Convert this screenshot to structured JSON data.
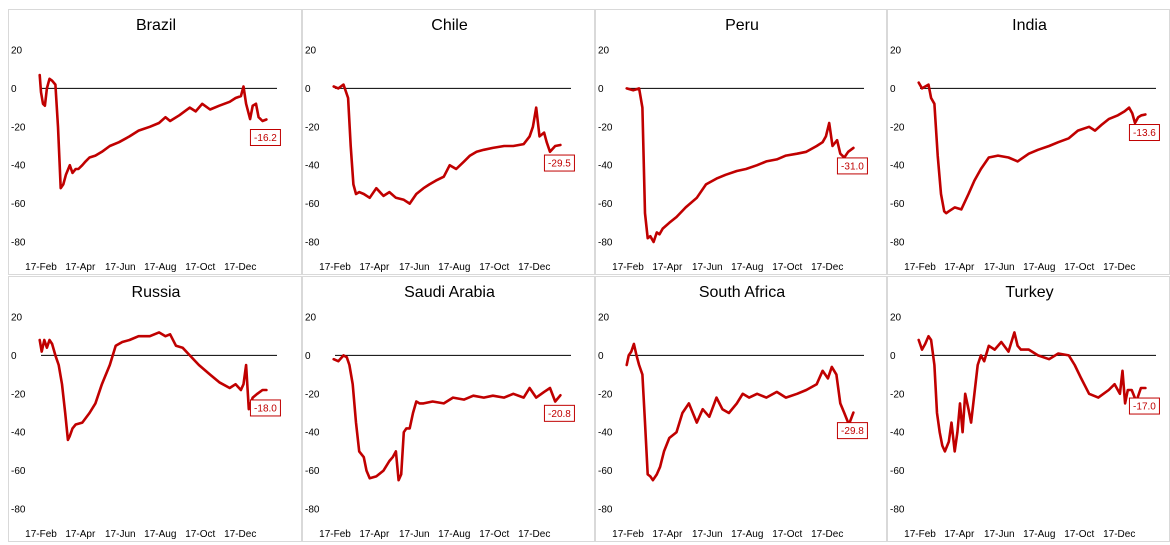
{
  "style": {
    "series_color": "#c00000",
    "zero_line_color": "#000000",
    "label_box_border": "#c00000"
  },
  "chart_data": [
    {
      "type": "line",
      "title": "Brazil",
      "y_ticks": [
        "20",
        "0",
        "-20",
        "-40",
        "-60",
        "-80"
      ],
      "ylim": [
        -80,
        20
      ],
      "x_ticks": [
        "17-Feb",
        "17-Apr",
        "17-Jun",
        "17-Aug",
        "17-Oct",
        "17-Dec"
      ],
      "last_label": "-16.2",
      "x": [
        "2020-02-15",
        "2020-02-17",
        "2020-02-20",
        "2020-02-23",
        "2020-02-26",
        "2020-03-01",
        "2020-03-05",
        "2020-03-10",
        "2020-03-14",
        "2020-03-18",
        "2020-03-22",
        "2020-03-26",
        "2020-04-01",
        "2020-04-05",
        "2020-04-10",
        "2020-04-14",
        "2020-04-20",
        "2020-04-25",
        "2020-05-01",
        "2020-05-10",
        "2020-05-20",
        "2020-06-01",
        "2020-06-15",
        "2020-07-01",
        "2020-07-15",
        "2020-08-01",
        "2020-08-15",
        "2020-08-25",
        "2020-09-01",
        "2020-09-15",
        "2020-10-01",
        "2020-10-10",
        "2020-10-20",
        "2020-11-01",
        "2020-11-15",
        "2020-12-01",
        "2020-12-10",
        "2020-12-18",
        "2020-12-22",
        "2020-12-26",
        "2021-01-01",
        "2021-01-05",
        "2021-01-10",
        "2021-01-14",
        "2021-01-20",
        "2021-01-26"
      ],
      "values": [
        7,
        -2,
        -8,
        -9,
        0,
        5,
        4,
        2,
        -20,
        -52,
        -50,
        -45,
        -40,
        -44,
        -42,
        -42,
        -40,
        -38,
        -36,
        -35,
        -33,
        -30,
        -28,
        -25,
        -22,
        -20,
        -18,
        -15,
        -17,
        -14,
        -10,
        -12,
        -8,
        -11,
        -9,
        -7,
        -5,
        -4,
        1,
        -8,
        -16,
        -9,
        -8,
        -15,
        -17,
        -16.2
      ]
    },
    {
      "type": "line",
      "title": "Chile",
      "y_ticks": [
        "20",
        "0",
        "-20",
        "-40",
        "-60",
        "-80"
      ],
      "ylim": [
        -80,
        20
      ],
      "x_ticks": [
        "17-Feb",
        "17-Apr",
        "17-Jun",
        "17-Aug",
        "17-Oct",
        "17-Dec"
      ],
      "last_label": "-29.5",
      "x": [
        "2020-02-15",
        "2020-02-22",
        "2020-03-01",
        "2020-03-08",
        "2020-03-12",
        "2020-03-16",
        "2020-03-20",
        "2020-03-25",
        "2020-04-01",
        "2020-04-10",
        "2020-04-20",
        "2020-05-01",
        "2020-05-10",
        "2020-05-20",
        "2020-06-01",
        "2020-06-10",
        "2020-06-20",
        "2020-07-01",
        "2020-07-10",
        "2020-07-20",
        "2020-08-01",
        "2020-08-10",
        "2020-08-20",
        "2020-09-01",
        "2020-09-10",
        "2020-09-20",
        "2020-10-01",
        "2020-10-15",
        "2020-11-01",
        "2020-11-15",
        "2020-12-01",
        "2020-12-10",
        "2020-12-15",
        "2020-12-20",
        "2020-12-25",
        "2021-01-01",
        "2021-01-05",
        "2021-01-10",
        "2021-01-18",
        "2021-01-26"
      ],
      "values": [
        1,
        0,
        2,
        -5,
        -30,
        -50,
        -55,
        -54,
        -55,
        -57,
        -52,
        -56,
        -54,
        -57,
        -58,
        -60,
        -55,
        -52,
        -50,
        -48,
        -46,
        -40,
        -42,
        -38,
        -35,
        -33,
        -32,
        -31,
        -30,
        -30,
        -29,
        -25,
        -20,
        -10,
        -25,
        -23,
        -28,
        -33,
        -30,
        -29.5
      ]
    },
    {
      "type": "line",
      "title": "Peru",
      "y_ticks": [
        "20",
        "0",
        "-20",
        "-40",
        "-60",
        "-80"
      ],
      "ylim": [
        -80,
        20
      ],
      "x_ticks": [
        "17-Feb",
        "17-Apr",
        "17-Jun",
        "17-Aug",
        "17-Oct",
        "17-Dec"
      ],
      "last_label": "-31.0",
      "x": [
        "2020-02-15",
        "2020-02-25",
        "2020-03-05",
        "2020-03-10",
        "2020-03-14",
        "2020-03-18",
        "2020-03-22",
        "2020-03-27",
        "2020-04-01",
        "2020-04-05",
        "2020-04-10",
        "2020-04-20",
        "2020-05-01",
        "2020-05-15",
        "2020-06-01",
        "2020-06-15",
        "2020-07-01",
        "2020-07-15",
        "2020-08-01",
        "2020-08-15",
        "2020-09-01",
        "2020-09-15",
        "2020-10-01",
        "2020-10-15",
        "2020-11-01",
        "2020-11-15",
        "2020-12-01",
        "2020-12-10",
        "2020-12-15",
        "2020-12-20",
        "2020-12-25",
        "2021-01-01",
        "2021-01-06",
        "2021-01-12",
        "2021-01-18",
        "2021-01-26"
      ],
      "values": [
        0,
        -1,
        0,
        -10,
        -65,
        -78,
        -77,
        -80,
        -75,
        -76,
        -73,
        -70,
        -67,
        -62,
        -57,
        -50,
        -47,
        -45,
        -43,
        -42,
        -40,
        -38,
        -37,
        -35,
        -34,
        -33,
        -30,
        -28,
        -25,
        -18,
        -30,
        -27,
        -34,
        -36,
        -33,
        -31
      ]
    },
    {
      "type": "line",
      "title": "India",
      "y_ticks": [
        "20",
        "0",
        "-20",
        "-40",
        "-60",
        "-80"
      ],
      "ylim": [
        -80,
        20
      ],
      "x_ticks": [
        "17-Feb",
        "17-Apr",
        "17-Jun",
        "17-Aug",
        "17-Oct",
        "17-Dec"
      ],
      "last_label": "-13.6",
      "x": [
        "2020-02-15",
        "2020-02-20",
        "2020-03-01",
        "2020-03-05",
        "2020-03-10",
        "2020-03-15",
        "2020-03-20",
        "2020-03-25",
        "2020-03-28",
        "2020-04-01",
        "2020-04-10",
        "2020-04-20",
        "2020-05-01",
        "2020-05-10",
        "2020-05-20",
        "2020-06-01",
        "2020-06-15",
        "2020-07-01",
        "2020-07-15",
        "2020-08-01",
        "2020-08-15",
        "2020-09-01",
        "2020-09-15",
        "2020-10-01",
        "2020-10-15",
        "2020-11-01",
        "2020-11-10",
        "2020-11-20",
        "2020-12-01",
        "2020-12-15",
        "2020-12-25",
        "2021-01-01",
        "2021-01-06",
        "2021-01-10",
        "2021-01-15",
        "2021-01-20",
        "2021-01-26"
      ],
      "values": [
        3,
        0,
        2,
        -5,
        -8,
        -35,
        -55,
        -64,
        -65,
        -64,
        -62,
        -63,
        -55,
        -48,
        -42,
        -36,
        -35,
        -36,
        -38,
        -34,
        -32,
        -30,
        -28,
        -26,
        -22,
        -20,
        -22,
        -19,
        -16,
        -14,
        -12,
        -10,
        -13,
        -18,
        -15,
        -14,
        -13.6
      ]
    },
    {
      "type": "line",
      "title": "Russia",
      "y_ticks": [
        "20",
        "0",
        "-20",
        "-40",
        "-60",
        "-80"
      ],
      "ylim": [
        -80,
        20
      ],
      "x_ticks": [
        "17-Feb",
        "17-Apr",
        "17-Jun",
        "17-Aug",
        "17-Oct",
        "17-Dec"
      ],
      "last_label": "-18.0",
      "x": [
        "2020-02-15",
        "2020-02-18",
        "2020-02-22",
        "2020-02-26",
        "2020-03-01",
        "2020-03-05",
        "2020-03-10",
        "2020-03-15",
        "2020-03-20",
        "2020-03-25",
        "2020-03-29",
        "2020-04-01",
        "2020-04-05",
        "2020-04-10",
        "2020-04-20",
        "2020-05-01",
        "2020-05-10",
        "2020-05-20",
        "2020-06-01",
        "2020-06-10",
        "2020-06-20",
        "2020-07-01",
        "2020-07-15",
        "2020-08-01",
        "2020-08-15",
        "2020-08-25",
        "2020-09-01",
        "2020-09-10",
        "2020-09-20",
        "2020-10-01",
        "2020-10-15",
        "2020-11-01",
        "2020-11-15",
        "2020-12-01",
        "2020-12-10",
        "2020-12-18",
        "2020-12-22",
        "2020-12-26",
        "2020-12-30",
        "2021-01-05",
        "2021-01-12",
        "2021-01-20",
        "2021-01-26"
      ],
      "values": [
        8,
        2,
        8,
        4,
        8,
        6,
        0,
        -5,
        -15,
        -30,
        -44,
        -42,
        -38,
        -36,
        -35,
        -30,
        -25,
        -15,
        -5,
        5,
        7,
        8,
        10,
        10,
        12,
        10,
        11,
        5,
        4,
        0,
        -5,
        -10,
        -14,
        -17,
        -15,
        -18,
        -15,
        -5,
        -28,
        -22,
        -20,
        -18,
        -18
      ]
    },
    {
      "type": "line",
      "title": "Saudi Arabia",
      "y_ticks": [
        "20",
        "0",
        "-20",
        "-40",
        "-60",
        "-80"
      ],
      "ylim": [
        -80,
        20
      ],
      "x_ticks": [
        "17-Feb",
        "17-Apr",
        "17-Jun",
        "17-Aug",
        "17-Oct",
        "17-Dec"
      ],
      "last_label": "-20.8",
      "x": [
        "2020-02-15",
        "2020-02-22",
        "2020-03-01",
        "2020-03-06",
        "2020-03-10",
        "2020-03-15",
        "2020-03-20",
        "2020-03-25",
        "2020-04-01",
        "2020-04-05",
        "2020-04-10",
        "2020-04-20",
        "2020-05-01",
        "2020-05-10",
        "2020-05-15",
        "2020-05-20",
        "2020-05-24",
        "2020-05-28",
        "2020-06-01",
        "2020-06-05",
        "2020-06-10",
        "2020-06-15",
        "2020-06-20",
        "2020-06-25",
        "2020-07-01",
        "2020-07-15",
        "2020-08-01",
        "2020-08-15",
        "2020-09-01",
        "2020-09-15",
        "2020-10-01",
        "2020-10-15",
        "2020-11-01",
        "2020-11-15",
        "2020-12-01",
        "2020-12-10",
        "2020-12-20",
        "2021-01-01",
        "2021-01-10",
        "2021-01-18",
        "2021-01-26"
      ],
      "values": [
        -2,
        -3,
        0,
        -1,
        -5,
        -15,
        -35,
        -50,
        -53,
        -60,
        -64,
        -63,
        -60,
        -55,
        -53,
        -50,
        -65,
        -62,
        -40,
        -38,
        -38,
        -30,
        -24,
        -25,
        -25,
        -24,
        -25,
        -22,
        -23,
        -21,
        -22,
        -21,
        -22,
        -20,
        -22,
        -17,
        -22,
        -19,
        -17,
        -24,
        -20.8
      ]
    },
    {
      "type": "line",
      "title": "South Africa",
      "y_ticks": [
        "20",
        "0",
        "-20",
        "-40",
        "-60",
        "-80"
      ],
      "ylim": [
        -80,
        20
      ],
      "x_ticks": [
        "17-Feb",
        "17-Apr",
        "17-Jun",
        "17-Aug",
        "17-Oct",
        "17-Dec"
      ],
      "last_label": "-29.8",
      "x": [
        "2020-02-15",
        "2020-02-18",
        "2020-02-22",
        "2020-02-26",
        "2020-03-01",
        "2020-03-05",
        "2020-03-10",
        "2020-03-14",
        "2020-03-18",
        "2020-03-22",
        "2020-03-26",
        "2020-04-01",
        "2020-04-06",
        "2020-04-12",
        "2020-04-20",
        "2020-05-01",
        "2020-05-10",
        "2020-05-20",
        "2020-06-01",
        "2020-06-10",
        "2020-06-20",
        "2020-07-01",
        "2020-07-10",
        "2020-07-20",
        "2020-08-01",
        "2020-08-10",
        "2020-08-20",
        "2020-09-01",
        "2020-09-15",
        "2020-10-01",
        "2020-10-15",
        "2020-11-01",
        "2020-11-15",
        "2020-12-01",
        "2020-12-10",
        "2020-12-18",
        "2020-12-24",
        "2020-12-31",
        "2021-01-06",
        "2021-01-12",
        "2021-01-19",
        "2021-01-26"
      ],
      "values": [
        -5,
        0,
        2,
        6,
        0,
        -5,
        -10,
        -35,
        -62,
        -63,
        -65,
        -62,
        -58,
        -50,
        -43,
        -40,
        -30,
        -25,
        -35,
        -28,
        -32,
        -22,
        -28,
        -30,
        -25,
        -20,
        -22,
        -20,
        -22,
        -19,
        -22,
        -20,
        -18,
        -15,
        -8,
        -12,
        -6,
        -10,
        -25,
        -30,
        -36,
        -29.8
      ]
    },
    {
      "type": "line",
      "title": "Turkey",
      "y_ticks": [
        "20",
        "0",
        "-20",
        "-40",
        "-60",
        "-80"
      ],
      "ylim": [
        -80,
        20
      ],
      "x_ticks": [
        "17-Feb",
        "17-Apr",
        "17-Jun",
        "17-Aug",
        "17-Oct",
        "17-Dec"
      ],
      "last_label": "-17.0",
      "x": [
        "2020-02-15",
        "2020-02-20",
        "2020-02-25",
        "2020-03-01",
        "2020-03-05",
        "2020-03-10",
        "2020-03-14",
        "2020-03-18",
        "2020-03-22",
        "2020-03-26",
        "2020-04-01",
        "2020-04-05",
        "2020-04-10",
        "2020-04-14",
        "2020-04-18",
        "2020-04-22",
        "2020-04-26",
        "2020-05-01",
        "2020-05-05",
        "2020-05-10",
        "2020-05-15",
        "2020-05-20",
        "2020-05-25",
        "2020-06-01",
        "2020-06-10",
        "2020-06-20",
        "2020-07-01",
        "2020-07-10",
        "2020-07-15",
        "2020-07-20",
        "2020-08-01",
        "2020-08-15",
        "2020-09-01",
        "2020-09-15",
        "2020-10-01",
        "2020-10-10",
        "2020-10-20",
        "2020-11-01",
        "2020-11-15",
        "2020-12-01",
        "2020-12-10",
        "2020-12-18",
        "2020-12-22",
        "2020-12-26",
        "2020-12-30",
        "2021-01-05",
        "2021-01-12",
        "2021-01-19",
        "2021-01-26"
      ],
      "values": [
        8,
        3,
        6,
        10,
        8,
        -5,
        -30,
        -40,
        -47,
        -50,
        -45,
        -35,
        -50,
        -40,
        -25,
        -40,
        -20,
        -28,
        -35,
        -20,
        -5,
        0,
        -3,
        5,
        3,
        7,
        2,
        12,
        5,
        3,
        3,
        0,
        -2,
        1,
        0,
        -5,
        -12,
        -20,
        -22,
        -18,
        -15,
        -20,
        -8,
        -25,
        -18,
        -18,
        -24,
        -17,
        -17
      ]
    }
  ]
}
